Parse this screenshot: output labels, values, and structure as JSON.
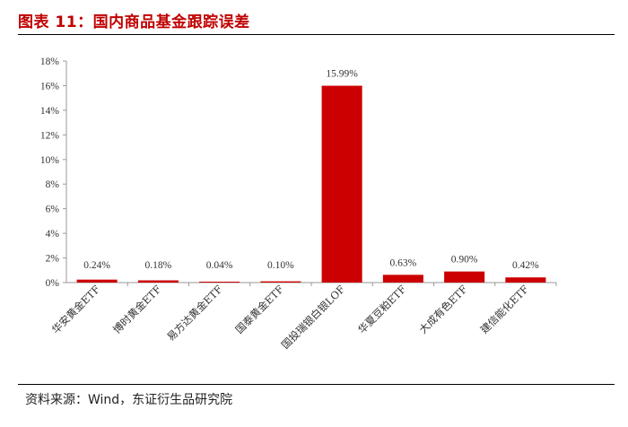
{
  "title": "图表 11：国内商品基金跟踪误差",
  "source": "资料来源：Wind，东证衍生品研究院",
  "colors": {
    "bar": "#cc0000",
    "title": "#c00000",
    "axis": "#999999"
  },
  "chart_data": {
    "type": "bar",
    "title": "图表 11：国内商品基金跟踪误差",
    "xlabel": "",
    "ylabel": "",
    "categories": [
      "华安黄金ETF",
      "博时黄金ETF",
      "易方达黄金ETF",
      "国泰黄金ETF",
      "国投瑞银白银LOF",
      "华夏豆粕ETF",
      "大成有色ETF",
      "建信能化ETF"
    ],
    "values": [
      0.24,
      0.18,
      0.04,
      0.1,
      15.99,
      0.63,
      0.9,
      0.42
    ],
    "data_labels": [
      "0.24%",
      "0.18%",
      "0.04%",
      "0.10%",
      "15.99%",
      "0.63%",
      "0.90%",
      "0.42%"
    ],
    "ylim": [
      0,
      18
    ],
    "yticks": [
      "0%",
      "2%",
      "4%",
      "6%",
      "8%",
      "10%",
      "12%",
      "14%",
      "16%",
      "18%"
    ],
    "grid": false,
    "legend": "none"
  }
}
